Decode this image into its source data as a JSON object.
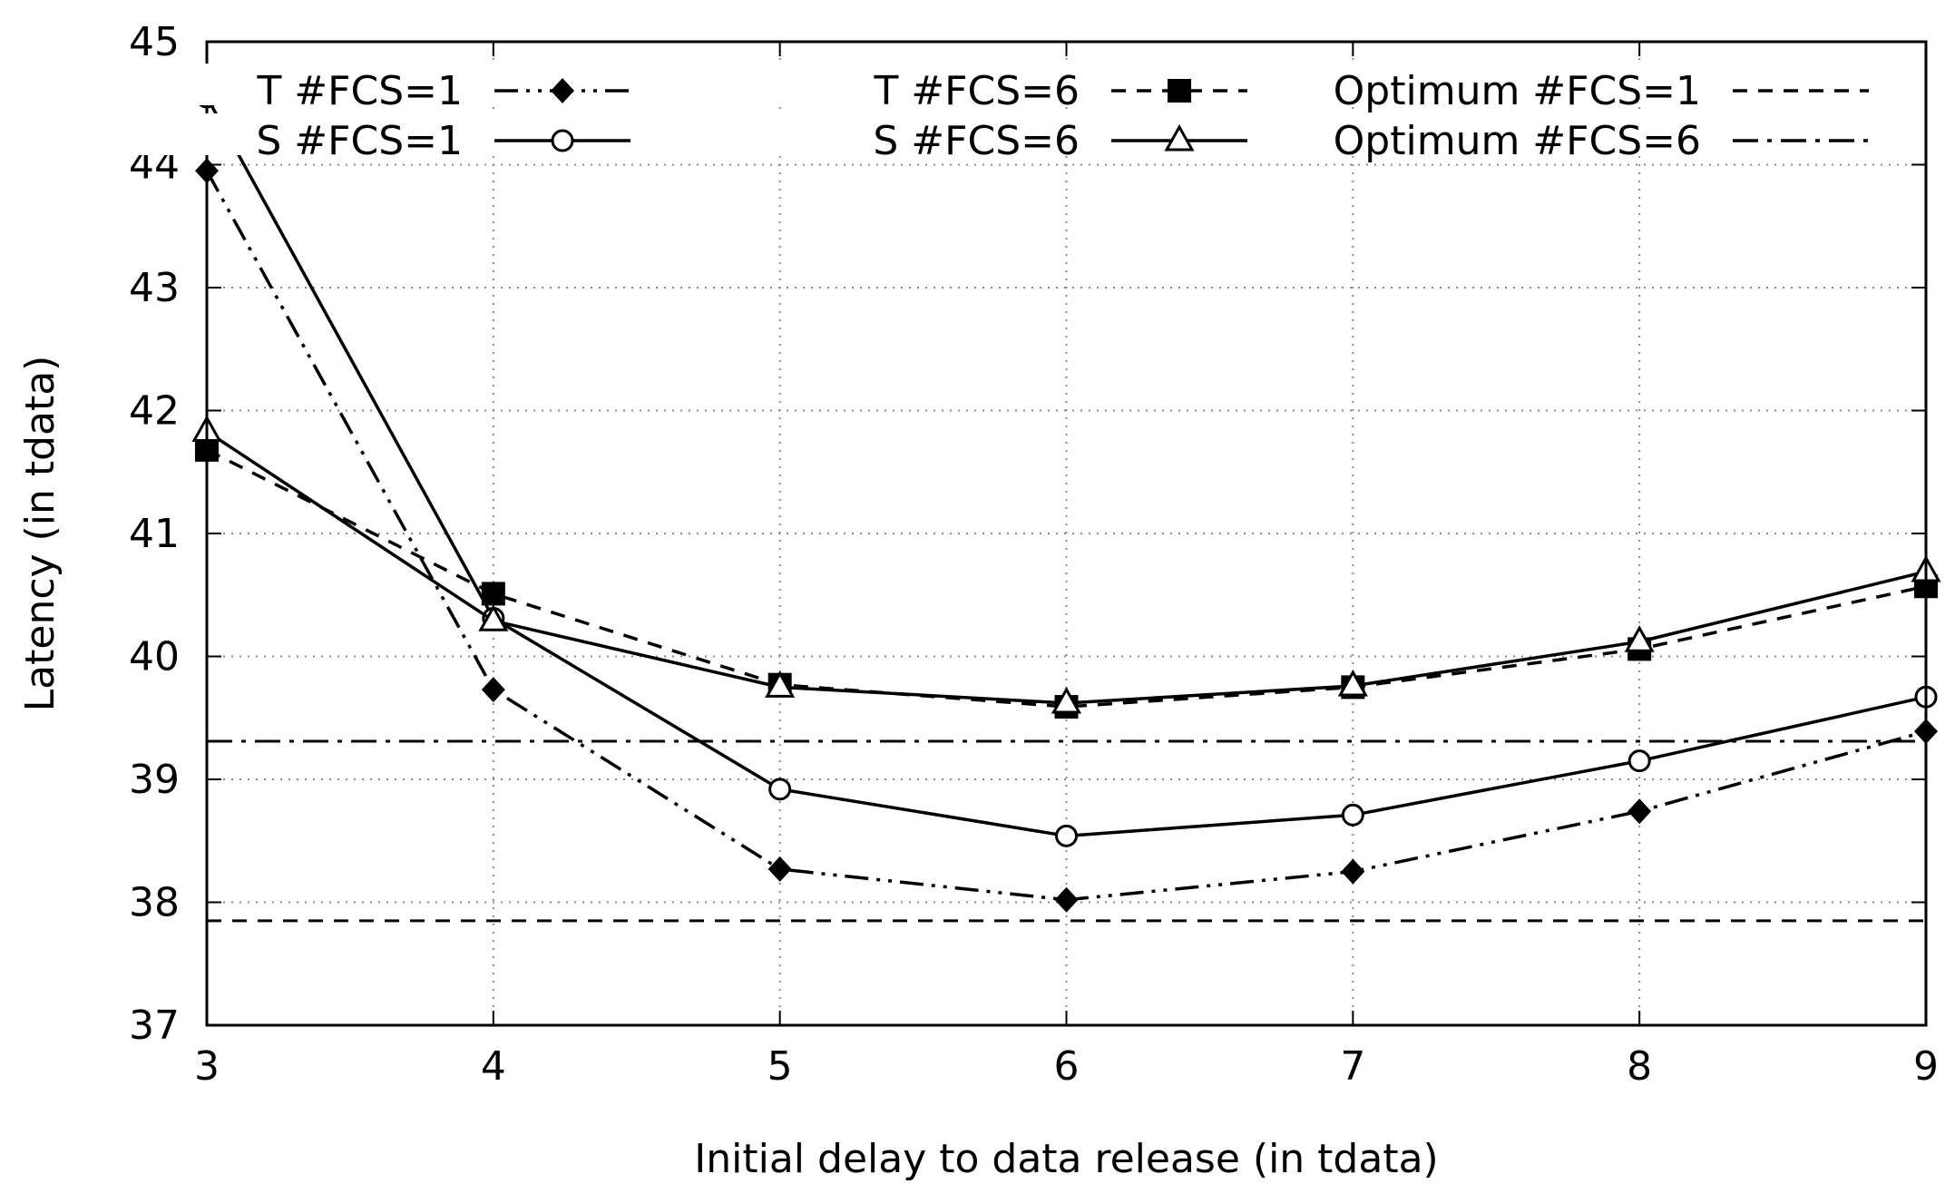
{
  "chart_data": {
    "type": "line",
    "title": "",
    "xlabel": "Initial delay to data release (in tdata)",
    "ylabel": "Latency (in tdata)",
    "xlim": [
      3,
      9
    ],
    "ylim": [
      37,
      45
    ],
    "xticks": [
      3,
      4,
      5,
      6,
      7,
      8,
      9
    ],
    "yticks": [
      37,
      38,
      39,
      40,
      41,
      42,
      43,
      44,
      45
    ],
    "grid": true,
    "legend_position": "top",
    "x": [
      3,
      4,
      5,
      6,
      7,
      8,
      9
    ],
    "series": [
      {
        "key": "t1",
        "name": "T #FCS=1",
        "style": "dash-dot-dot",
        "marker": "diamond",
        "values": [
          43.95,
          39.73,
          38.27,
          38.02,
          38.25,
          38.74,
          39.39
        ]
      },
      {
        "key": "s1",
        "name": "S #FCS=1",
        "style": "solid",
        "marker": "circle",
        "values": [
          44.55,
          40.31,
          38.92,
          38.54,
          38.71,
          39.15,
          39.67
        ]
      },
      {
        "key": "t6",
        "name": "T #FCS=6",
        "style": "dashed",
        "marker": "square",
        "values": [
          41.68,
          40.51,
          39.77,
          39.59,
          39.75,
          40.06,
          40.57
        ]
      },
      {
        "key": "s6",
        "name": "S #FCS=6",
        "style": "solid",
        "marker": "triangle",
        "values": [
          41.83,
          40.29,
          39.75,
          39.62,
          39.76,
          40.12,
          40.69
        ]
      }
    ],
    "reference_lines": [
      {
        "key": "opt1",
        "name": "Optimum #FCS=1",
        "style": "dashed",
        "value": 37.85
      },
      {
        "key": "opt6",
        "name": "Optimum #FCS=6",
        "style": "dash-dot",
        "value": 39.31
      }
    ]
  }
}
